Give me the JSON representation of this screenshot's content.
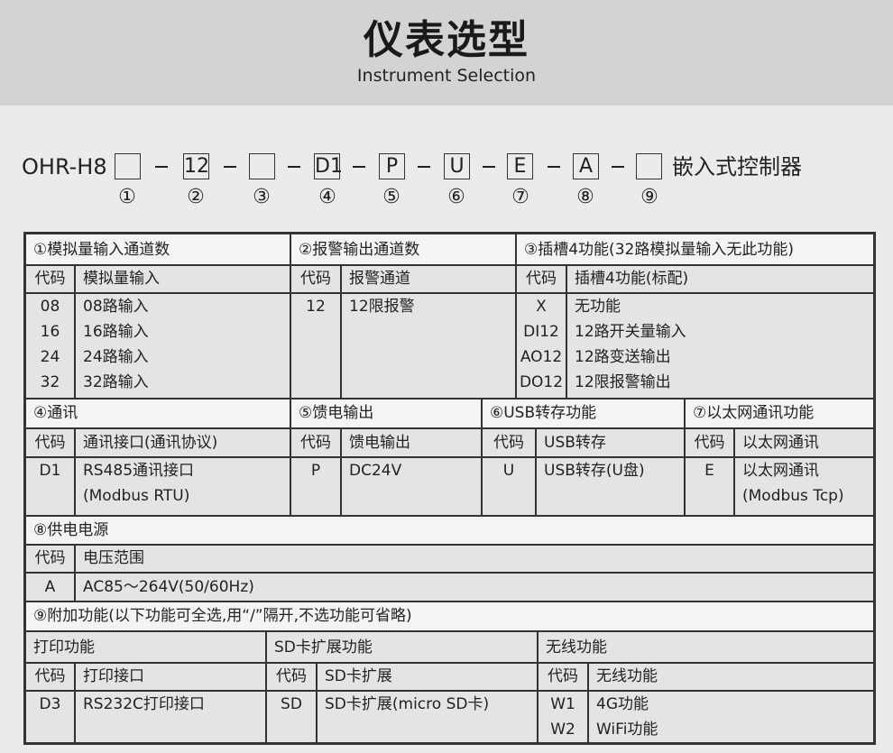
{
  "header": {
    "title": "仪表选型",
    "subtitle": "Instrument Selection"
  },
  "model": {
    "prefix": "OHR-H8",
    "boxes": [
      "",
      "12",
      "",
      "D1",
      "P",
      "U",
      "E",
      "A",
      ""
    ],
    "suffix": "嵌入式控制器",
    "markers": [
      "①",
      "②",
      "③",
      "④",
      "⑤",
      "⑥",
      "⑦",
      "⑧",
      "⑨"
    ]
  },
  "s1": {
    "title": "①模拟量输入通道数",
    "code_h": "代码",
    "desc_h": "模拟量输入",
    "codes": [
      "08",
      "16",
      "24",
      "32"
    ],
    "descs": [
      "08路输入",
      "16路输入",
      "24路输入",
      "32路输入"
    ]
  },
  "s2": {
    "title": "②报警输出通道数",
    "code_h": "代码",
    "desc_h": "报警通道",
    "codes": [
      "12"
    ],
    "descs": [
      "12限报警"
    ]
  },
  "s3": {
    "title": "③插槽4功能(32路模拟量输入无此功能)",
    "code_h": "代码",
    "desc_h": "插槽4功能(标配)",
    "codes": [
      "X",
      "DI12",
      "AO12",
      "DO12"
    ],
    "descs": [
      "无功能",
      "12路开关量输入",
      "12路变送输出",
      "12限报警输出"
    ]
  },
  "s4": {
    "title": "④通讯",
    "code_h": "代码",
    "desc_h": "通讯接口(通讯协议)",
    "codes": [
      "D1"
    ],
    "descs": [
      "RS485通讯接口",
      "(Modbus RTU)"
    ]
  },
  "s5": {
    "title": "⑤馈电输出",
    "code_h": "代码",
    "desc_h": "馈电输出",
    "codes": [
      "P"
    ],
    "descs": [
      "DC24V"
    ]
  },
  "s6": {
    "title": "⑥USB转存功能",
    "code_h": "代码",
    "desc_h": "USB转存",
    "codes": [
      "U"
    ],
    "descs": [
      "USB转存(U盘)"
    ]
  },
  "s7": {
    "title": "⑦以太网通讯功能",
    "code_h": "代码",
    "desc_h": "以太网通讯",
    "codes": [
      "E"
    ],
    "descs": [
      "以太网通讯",
      "(Modbus Tcp)"
    ]
  },
  "s8": {
    "title": "⑧供电电源",
    "code_h": "代码",
    "desc_h": "电压范围",
    "codes": [
      "A"
    ],
    "descs": [
      "AC85～264V(50/60Hz)"
    ]
  },
  "s9": {
    "title": "⑨附加功能(以下功能可全选,用“/”隔开,不选功能可省略)",
    "print": {
      "title": "打印功能",
      "code_h": "代码",
      "desc_h": "打印接口",
      "codes": [
        "D3"
      ],
      "descs": [
        "RS232C打印接口"
      ]
    },
    "sd": {
      "title": "SD卡扩展功能",
      "code_h": "代码",
      "desc_h": "SD卡扩展",
      "codes": [
        "SD"
      ],
      "descs": [
        "SD卡扩展(micro SD卡)"
      ]
    },
    "wireless": {
      "title": "无线功能",
      "code_h": "代码",
      "desc_h": "无线功能",
      "codes": [
        "W1",
        "W2"
      ],
      "descs": [
        "4G功能",
        "WiFi功能"
      ]
    }
  }
}
